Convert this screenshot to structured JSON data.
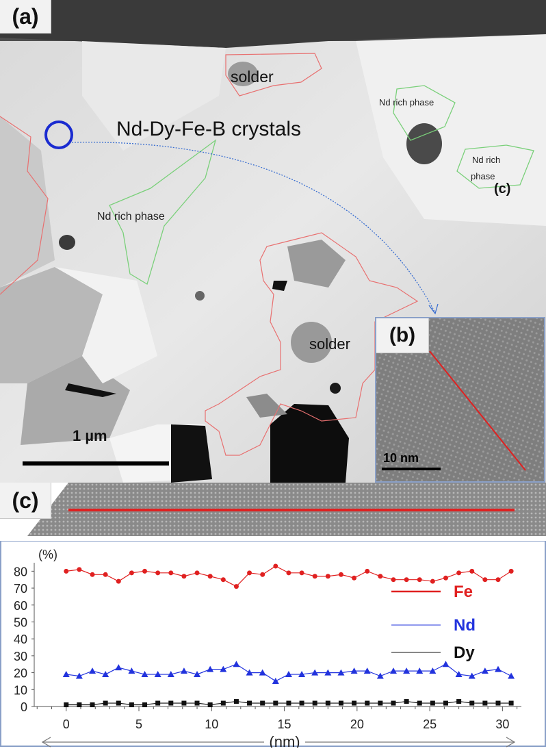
{
  "panel_a": {
    "tag": "(a)",
    "labels": {
      "solder_top": "solder",
      "solder_bottom": "solder",
      "crystals": "Nd-Dy-Fe-B crystals",
      "nd_rich_left": "Nd rich phase",
      "nd_rich_top_right": "Nd rich phase",
      "nd_rich_right_line1": "Nd rich",
      "nd_rich_right_line2": "phase",
      "c_marker": "(c)"
    },
    "scale_bar_label": "1 µm"
  },
  "panel_b": {
    "tag": "(b)",
    "scale_bar_label": "10 nm"
  },
  "panel_c": {
    "tag": "(c)"
  },
  "colors": {
    "fe": "#e02020",
    "nd": "#2233dd",
    "dy": "#111111",
    "boundary_red": "#e87070",
    "boundary_green": "#7ad07a",
    "circle_blue": "#1a2bd0",
    "inset_border": "#8aa0c8"
  },
  "chart_data": {
    "type": "line",
    "ylabel": "(%)",
    "xlabel": "(nm)",
    "xlim": [
      -2.2,
      31.3
    ],
    "ylim": [
      0,
      85
    ],
    "x_ticks": [
      "0",
      "5",
      "10",
      "15",
      "20",
      "25",
      "30"
    ],
    "y_ticks": [
      "0",
      "10",
      "20",
      "30",
      "40",
      "50",
      "60",
      "70",
      "80"
    ],
    "x": [
      0,
      0.9,
      1.8,
      2.7,
      3.6,
      4.5,
      5.4,
      6.3,
      7.2,
      8.1,
      9.0,
      9.9,
      10.8,
      11.7,
      12.6,
      13.5,
      14.4,
      15.3,
      16.2,
      17.1,
      18.0,
      18.9,
      19.8,
      20.7,
      21.6,
      22.5,
      23.4,
      24.3,
      25.2,
      26.1,
      27.0,
      27.9,
      28.8,
      29.7,
      30.6
    ],
    "series": [
      {
        "name": "Fe",
        "marker": "circle",
        "values": [
          80,
          81,
          78,
          78,
          74,
          79,
          80,
          79,
          79,
          77,
          79,
          77,
          75,
          71,
          79,
          78,
          83,
          79,
          79,
          77,
          77,
          78,
          76,
          80,
          77,
          75,
          75,
          75,
          74,
          76,
          79,
          80,
          75,
          75,
          80
        ]
      },
      {
        "name": "Nd",
        "marker": "triangle",
        "values": [
          19,
          18,
          21,
          19,
          23,
          21,
          19,
          19,
          19,
          21,
          19,
          22,
          22,
          25,
          20,
          20,
          15,
          19,
          19,
          20,
          20,
          20,
          21,
          21,
          18,
          21,
          21,
          21,
          21,
          25,
          19,
          18,
          21,
          22,
          18
        ]
      },
      {
        "name": "Dy",
        "marker": "square",
        "values": [
          1,
          1,
          1,
          2,
          2,
          1,
          1,
          2,
          2,
          2,
          2,
          1,
          2,
          3,
          2,
          2,
          2,
          2,
          2,
          2,
          2,
          2,
          2,
          2,
          2,
          2,
          3,
          2,
          2,
          2,
          3,
          2,
          2,
          2,
          2
        ]
      }
    ]
  }
}
